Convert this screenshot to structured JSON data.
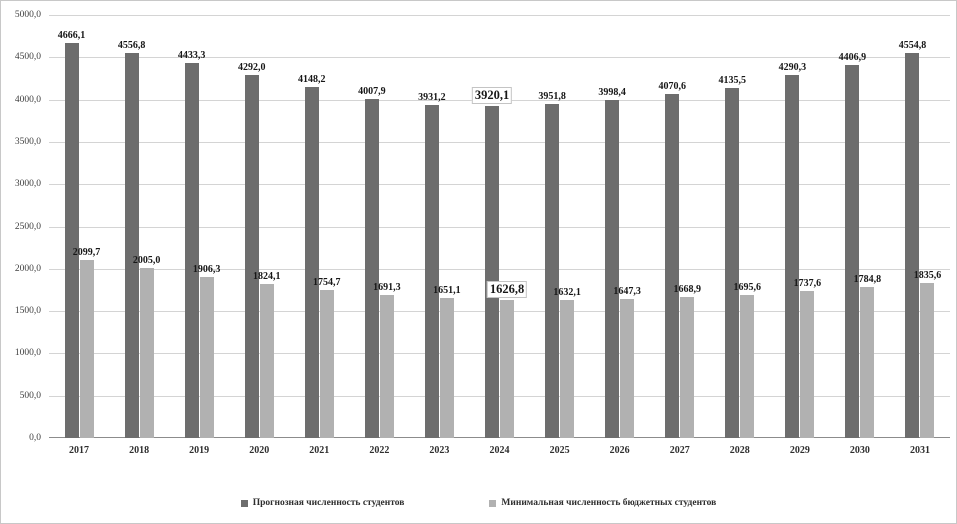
{
  "chart_data": {
    "type": "bar",
    "title": "",
    "xlabel": "",
    "ylabel": "",
    "grid": true,
    "legend_position": "bottom",
    "ylim": [
      0,
      5000
    ],
    "ytick_step": 500,
    "ytick_labels": [
      "0,0",
      "500,0",
      "1000,0",
      "1500,0",
      "2000,0",
      "2500,0",
      "3000,0",
      "3500,0",
      "4000,0",
      "4500,0",
      "5000,0"
    ],
    "categories": [
      "2017",
      "2018",
      "2019",
      "2020",
      "2021",
      "2022",
      "2023",
      "2024",
      "2025",
      "2026",
      "2027",
      "2028",
      "2029",
      "2030",
      "2031"
    ],
    "highlight_index": 7,
    "series": [
      {
        "name": "Прогнозная численность студентов",
        "color": "#6d6d6d",
        "values": [
          4666.1,
          4556.8,
          4433.3,
          4292.0,
          4148.2,
          4007.9,
          3931.2,
          3920.1,
          3951.8,
          3998.4,
          4070.6,
          4135.5,
          4290.3,
          4406.9,
          4554.8
        ],
        "labels": [
          "4666,1",
          "4556,8",
          "4433,3",
          "4292,0",
          "4148,2",
          "4007,9",
          "3931,2",
          "3920,1",
          "3951,8",
          "3998,4",
          "4070,6",
          "4135,5",
          "4290,3",
          "4406,9",
          "4554,8"
        ]
      },
      {
        "name": "Минимальная численность бюджетных студентов",
        "color": "#b1b1b1",
        "values": [
          2099.7,
          2005.0,
          1906.3,
          1824.1,
          1754.7,
          1691.3,
          1651.1,
          1626.8,
          1632.1,
          1647.3,
          1668.9,
          1695.6,
          1737.6,
          1784.8,
          1835.6
        ],
        "labels": [
          "2099,7",
          "2005,0",
          "1906,3",
          "1824,1",
          "1754,7",
          "1691,3",
          "1651,1",
          "1626,8",
          "1632,1",
          "1647,3",
          "1668,9",
          "1695,6",
          "1737,6",
          "1784,8",
          "1835,6"
        ]
      }
    ]
  }
}
